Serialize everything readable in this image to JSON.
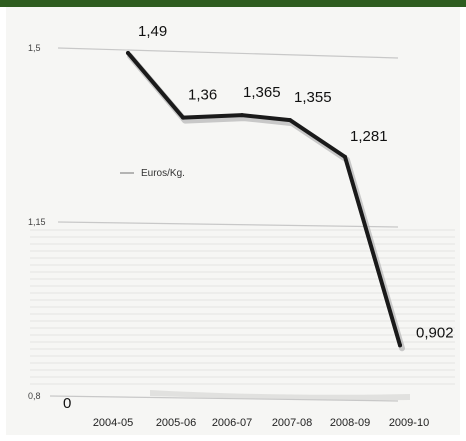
{
  "chart_data": {
    "type": "line",
    "categories": [
      "2004-05",
      "2005-06",
      "2006-07",
      "2007-08",
      "2008-09",
      "2009-10"
    ],
    "series": [
      {
        "name": "Euros/Kg.",
        "values": [
          1.49,
          1.36,
          1.365,
          1.355,
          1.281,
          0.902
        ]
      }
    ],
    "data_labels": [
      "1,49",
      "1,36",
      "1,365",
      "1,355",
      "1,281",
      "0,902"
    ],
    "yticks": [
      {
        "value": 1.5,
        "label": "1,5"
      },
      {
        "value": 1.15,
        "label": "1,15"
      },
      {
        "value": 0.8,
        "label": "0,8"
      }
    ],
    "zero_label": "0",
    "ylim": [
      0.8,
      1.5
    ],
    "grid": true,
    "legend": {
      "position": "middle-left",
      "label": "Euros/Kg."
    },
    "colors": {
      "line": "#1a1a1a",
      "grid": "#c8c8c8",
      "header_bar": "#2e5c1f"
    }
  }
}
